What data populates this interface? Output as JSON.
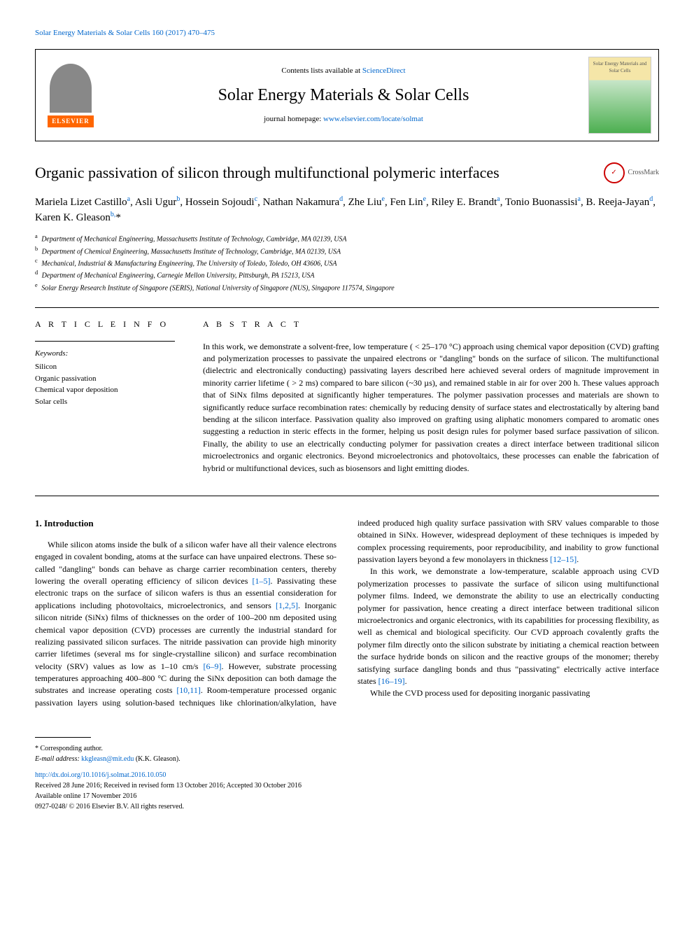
{
  "topCitation": "Solar Energy Materials & Solar Cells 160 (2017) 470–475",
  "header": {
    "contentsText": "Contents lists available at ",
    "contentsLink": "ScienceDirect",
    "journalName": "Solar Energy Materials & Solar Cells",
    "homepageText": "journal homepage: ",
    "homepageLink": "www.elsevier.com/locate/solmat",
    "elsevierLabel": "ELSEVIER",
    "coverTitle": "Solar Energy Materials and Solar Cells"
  },
  "crossmark": "CrossMark",
  "title": "Organic passivation of silicon through multifunctional polymeric interfaces",
  "authorsHTML": "Mariela Lizet Castillo<sup>a</sup>, Asli Ugur<sup>b</sup>, Hossein Sojoudi<sup>c</sup>, Nathan Nakamura<sup>d</sup>, Zhe Liu<sup>e</sup>, Fen Lin<sup>e</sup>, Riley E. Brandt<sup>a</sup>, Tonio Buonassisi<sup>a</sup>, B. Reeja-Jayan<sup>d</sup>, Karen K. Gleason<sup>b,</sup>*",
  "affiliations": [
    {
      "sup": "a",
      "text": "Department of Mechanical Engineering, Massachusetts Institute of Technology, Cambridge, MA 02139, USA"
    },
    {
      "sup": "b",
      "text": "Department of Chemical Engineering, Massachusetts Institute of Technology, Cambridge, MA 02139, USA"
    },
    {
      "sup": "c",
      "text": "Mechanical, Industrial & Manufacturing Engineering, The University of Toledo, Toledo, OH 43606, USA"
    },
    {
      "sup": "d",
      "text": "Department of Mechanical Engineering, Carnegie Mellon University, Pittsburgh, PA 15213, USA"
    },
    {
      "sup": "e",
      "text": "Solar Energy Research Institute of Singapore (SERIS), National University of Singapore (NUS), Singapore 117574, Singapore"
    }
  ],
  "articleInfo": {
    "heading": "A R T I C L E  I N F O",
    "keywordsLabel": "Keywords:",
    "keywords": [
      "Silicon",
      "Organic passivation",
      "Chemical vapor deposition",
      "Solar cells"
    ]
  },
  "abstract": {
    "heading": "A B S T R A C T",
    "text": "In this work, we demonstrate a solvent-free, low temperature ( < 25–170 °C) approach using chemical vapor deposition (CVD) grafting and polymerization processes to passivate the unpaired electrons or \"dangling\" bonds on the surface of silicon. The multifunctional (dielectric and electronically conducting) passivating layers described here achieved several orders of magnitude improvement in minority carrier lifetime ( > 2 ms) compared to bare silicon (~30 µs), and remained stable in air for over 200 h. These values approach that of SiNx films deposited at significantly higher temperatures. The polymer passivation processes and materials are shown to significantly reduce surface recombination rates: chemically by reducing density of surface states and electrostatically by altering band bending at the silicon interface. Passivation quality also improved on grafting using aliphatic monomers compared to aromatic ones suggesting a reduction in steric effects in the former, helping us posit design rules for polymer based surface passivation of silicon. Finally, the ability to use an electrically conducting polymer for passivation creates a direct interface between traditional silicon microelectronics and organic electronics. Beyond microelectronics and photovoltaics, these processes can enable the fabrication of hybrid or multifunctional devices, such as biosensors and light emitting diodes."
  },
  "introduction": {
    "heading": "1. Introduction",
    "para1_a": "While silicon atoms inside the bulk of a silicon wafer have all their valence electrons engaged in covalent bonding, atoms at the surface can have unpaired electrons. These so-called \"dangling\" bonds can behave as charge carrier recombination centers, thereby lowering the overall operating efficiency of silicon devices ",
    "ref1": "[1–5]",
    "para1_b": ". Passivating these electronic traps on the surface of silicon wafers is thus an essential consideration for applications including photovoltaics, microelectronics, and sensors ",
    "ref2": "[1,2,5]",
    "para1_c": ". Inorganic silicon nitride (SiNx) films of thicknesses on the order of 100–200 nm deposited using chemical vapor deposition (CVD) processes are currently the industrial standard for realizing passivated silicon surfaces. The nitride passivation can provide high minority carrier lifetimes (several ms for single-crystalline silicon) and surface recombination velocity (SRV) values as low as 1–10 cm/s ",
    "ref3": "[6–9]",
    "para1_d": ". However, substrate processing temperatures approaching 400–800 °C during the SiNx deposition can both damage the substrates and increase operating costs ",
    "ref4": "[10,11]",
    "para1_e": ". Room-temperature processed organic passivation layers using solution-based techniques like chlorination/alkylation, have indeed produced high quality surface passivation with SRV values comparable to those obtained in SiNx. However, widespread deployment of these techniques is impeded by complex processing requirements, poor reproducibility, and inability to grow functional passivation layers beyond a few monolayers in thickness ",
    "ref5": "[12–15]",
    "para1_f": ".",
    "para2_a": "In this work, we demonstrate a low-temperature, scalable approach using CVD polymerization processes to passivate the surface of silicon using multifunctional polymer films. Indeed, we demonstrate the ability to use an electrically conducting polymer for passivation, hence creating a direct interface between traditional silicon microelectronics and organic electronics, with its capabilities for processing flexibility, as well as chemical and biological specificity. Our CVD approach covalently grafts the polymer film directly onto the silicon substrate by initiating a chemical reaction between the surface hydride bonds on silicon and the reactive groups of the monomer; thereby satisfying surface dangling bonds and thus \"passivating\" electrically active interface states ",
    "ref6": "[16–19]",
    "para2_b": ".",
    "para3": "While the CVD process used for depositing inorganic passivating"
  },
  "footer": {
    "correspLabel": "* Corresponding author.",
    "emailLabel": "E-mail address: ",
    "email": "kkgleasn@mit.edu",
    "emailAfter": " (K.K. Gleason).",
    "doi": "http://dx.doi.org/10.1016/j.solmat.2016.10.050",
    "received": "Received 28 June 2016; Received in revised form 13 October 2016; Accepted 30 October 2016",
    "available": "Available online 17 November 2016",
    "copyright": "0927-0248/ © 2016 Elsevier B.V. All rights reserved."
  }
}
